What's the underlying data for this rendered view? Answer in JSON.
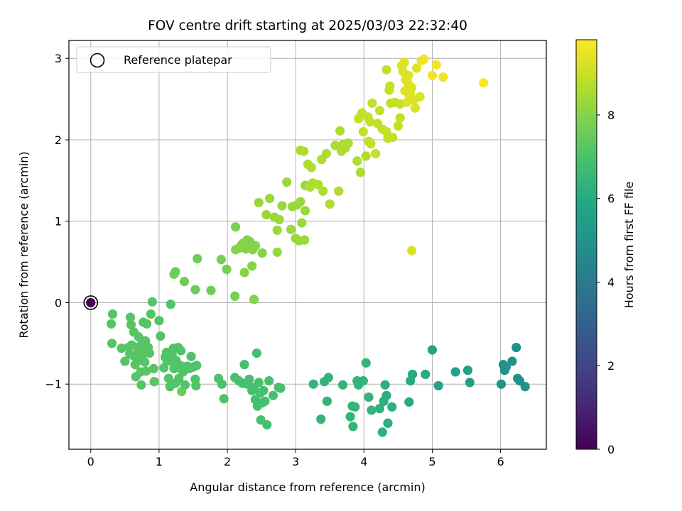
{
  "chart_data": {
    "type": "scatter",
    "title": "FOV centre drift starting at 2025/03/03 22:32:40",
    "xlabel": "Angular distance from reference (arcmin)",
    "ylabel": "Rotation from reference (arcmin)",
    "xlim": [
      -0.32,
      6.67
    ],
    "ylim": [
      -1.8,
      3.22
    ],
    "xticks": [
      0,
      1,
      2,
      3,
      4,
      5,
      6
    ],
    "yticks": [
      -1,
      0,
      1,
      2,
      3
    ],
    "xtick_labels": [
      "0",
      "1",
      "2",
      "3",
      "4",
      "5",
      "6"
    ],
    "ytick_labels": [
      "−1",
      "0",
      "1",
      "2",
      "3"
    ],
    "grid": true,
    "legend": {
      "position": "top-left",
      "label": "Reference platepar"
    },
    "colorbar": {
      "label": "Hours from first FF file",
      "min": 0,
      "max": 9.8,
      "ticks": [
        0,
        2,
        4,
        6,
        8
      ],
      "tick_labels": [
        "0",
        "2",
        "4",
        "6",
        "8"
      ],
      "colormap": "viridis"
    },
    "reference_point": {
      "x": 0,
      "y": 0,
      "value": 0
    },
    "points": [
      [
        0.3,
        -0.26,
        7.2
      ],
      [
        0.32,
        -0.14,
        7.2
      ],
      [
        0.31,
        -0.5,
        7.2
      ],
      [
        0.45,
        -0.56,
        7.2
      ],
      [
        0.5,
        -0.72,
        7.2
      ],
      [
        0.55,
        -0.55,
        7.2
      ],
      [
        0.57,
        -0.63,
        7.2
      ],
      [
        0.58,
        -0.18,
        7.2
      ],
      [
        0.59,
        -0.27,
        7.2
      ],
      [
        0.6,
        -0.52,
        7.2
      ],
      [
        0.62,
        -0.65,
        7.2
      ],
      [
        0.63,
        -0.36,
        7.2
      ],
      [
        0.65,
        -0.76,
        7.2
      ],
      [
        0.66,
        -0.91,
        7.2
      ],
      [
        0.68,
        -0.55,
        7.2
      ],
      [
        0.69,
        -0.71,
        7.2
      ],
      [
        0.7,
        -0.42,
        7.2
      ],
      [
        0.72,
        -0.6,
        7.2
      ],
      [
        0.73,
        -0.85,
        7.2
      ],
      [
        0.74,
        -1.01,
        7.2
      ],
      [
        0.75,
        -0.5,
        7.2
      ],
      [
        0.76,
        -0.64,
        7.2
      ],
      [
        0.77,
        -0.24,
        7.2
      ],
      [
        0.78,
        -0.57,
        7.2
      ],
      [
        0.79,
        -0.73,
        7.2
      ],
      [
        0.8,
        -0.47,
        7.2
      ],
      [
        0.81,
        -0.84,
        7.2
      ],
      [
        0.82,
        -0.26,
        7.2
      ],
      [
        0.84,
        -0.55,
        7.2
      ],
      [
        0.86,
        -0.62,
        7.2
      ],
      [
        0.88,
        -0.14,
        7.2
      ],
      [
        0.9,
        0.01,
        7.2
      ],
      [
        0.92,
        -0.81,
        7.2
      ],
      [
        0.93,
        -0.97,
        7.2
      ],
      [
        1.0,
        -0.22,
        7.1
      ],
      [
        1.02,
        -0.41,
        7.1
      ],
      [
        1.07,
        -0.8,
        7.1
      ],
      [
        1.09,
        -0.67,
        7.1
      ],
      [
        1.11,
        -0.61,
        7.1
      ],
      [
        1.12,
        -0.72,
        7.1
      ],
      [
        1.14,
        -0.93,
        7.1
      ],
      [
        1.16,
        -1.03,
        7.1
      ],
      [
        1.17,
        -0.02,
        7.1
      ],
      [
        1.19,
        -0.63,
        7.1
      ],
      [
        1.2,
        -0.72,
        7.1
      ],
      [
        1.21,
        -0.56,
        7.1
      ],
      [
        1.22,
        -0.81,
        7.1
      ],
      [
        1.24,
        -0.99,
        7.1
      ],
      [
        1.25,
        -0.71,
        7.1
      ],
      [
        1.26,
        -0.79,
        7.1
      ],
      [
        1.28,
        -0.55,
        7.1
      ],
      [
        1.29,
        -0.93,
        7.1
      ],
      [
        1.31,
        -0.77,
        7.1
      ],
      [
        1.32,
        -0.59,
        7.1
      ],
      [
        1.33,
        -1.09,
        7.6
      ],
      [
        1.35,
        -0.85,
        7.1
      ],
      [
        1.36,
        -0.79,
        7.1
      ],
      [
        1.38,
        -1.01,
        7.1
      ],
      [
        1.41,
        -0.78,
        7.1
      ],
      [
        1.44,
        -0.81,
        7.1
      ],
      [
        1.47,
        -0.66,
        7.1
      ],
      [
        1.5,
        -0.79,
        7.1
      ],
      [
        1.53,
        -0.94,
        7.1
      ],
      [
        1.54,
        -1.02,
        7.1
      ],
      [
        1.55,
        -0.77,
        7.1
      ],
      [
        1.22,
        0.35,
        7.6
      ],
      [
        1.24,
        0.38,
        7.6
      ],
      [
        1.37,
        0.26,
        7.6
      ],
      [
        1.53,
        0.16,
        7.6
      ],
      [
        1.56,
        0.54,
        7.6
      ],
      [
        1.76,
        0.15,
        7.6
      ],
      [
        1.91,
        0.53,
        7.8
      ],
      [
        1.99,
        0.41,
        7.8
      ],
      [
        2.11,
        0.08,
        7.8
      ],
      [
        2.12,
        0.93,
        7.8
      ],
      [
        2.12,
        0.65,
        8.0
      ],
      [
        2.17,
        0.67,
        8.0
      ],
      [
        2.2,
        0.7,
        8.0
      ],
      [
        2.23,
        0.73,
        8.0
      ],
      [
        2.25,
        0.37,
        8.0
      ],
      [
        2.27,
        0.66,
        8.0
      ],
      [
        2.29,
        0.77,
        8.0
      ],
      [
        2.31,
        0.72,
        8.0
      ],
      [
        2.33,
        0.75,
        8.0
      ],
      [
        2.35,
        0.68,
        8.0
      ],
      [
        2.36,
        0.45,
        8.0
      ],
      [
        2.37,
        0.65,
        8.0
      ],
      [
        2.39,
        0.04,
        8.0
      ],
      [
        2.41,
        0.7,
        8.0
      ],
      [
        2.46,
        1.23,
        8.3
      ],
      [
        2.51,
        0.61,
        8.0
      ],
      [
        2.57,
        1.08,
        8.3
      ],
      [
        2.62,
        1.28,
        8.3
      ],
      [
        2.69,
        1.05,
        8.3
      ],
      [
        2.73,
        0.62,
        8.3
      ],
      [
        2.73,
        0.89,
        8.3
      ],
      [
        2.76,
        1.02,
        8.3
      ],
      [
        2.8,
        1.19,
        8.3
      ],
      [
        2.87,
        1.48,
        8.3
      ],
      [
        2.93,
        0.9,
        8.3
      ],
      [
        2.95,
        1.18,
        8.3
      ],
      [
        3.0,
        0.79,
        8.3
      ],
      [
        3.02,
        1.2,
        8.3
      ],
      [
        3.05,
        0.76,
        8.3
      ],
      [
        3.07,
        1.24,
        8.3
      ],
      [
        3.09,
        0.98,
        8.3
      ],
      [
        3.13,
        0.77,
        8.3
      ],
      [
        3.14,
        1.13,
        8.3
      ],
      [
        3.14,
        1.44,
        8.3
      ],
      [
        3.07,
        1.87,
        8.6
      ],
      [
        3.12,
        1.86,
        8.6
      ],
      [
        3.18,
        1.7,
        8.6
      ],
      [
        3.21,
        1.42,
        8.6
      ],
      [
        3.23,
        1.66,
        8.6
      ],
      [
        3.25,
        1.47,
        8.6
      ],
      [
        3.33,
        1.45,
        8.6
      ],
      [
        3.38,
        1.76,
        8.6
      ],
      [
        3.4,
        1.37,
        8.6
      ],
      [
        3.45,
        1.83,
        8.6
      ],
      [
        3.5,
        1.21,
        8.6
      ],
      [
        3.58,
        1.93,
        8.6
      ],
      [
        3.63,
        1.37,
        8.6
      ],
      [
        3.65,
        2.11,
        8.6
      ],
      [
        3.67,
        1.86,
        8.6
      ],
      [
        3.69,
        1.94,
        8.6
      ],
      [
        3.73,
        1.9,
        8.6
      ],
      [
        3.77,
        1.96,
        8.6
      ],
      [
        3.9,
        1.74,
        8.6
      ],
      [
        3.92,
        2.26,
        8.9
      ],
      [
        3.95,
        1.6,
        8.6
      ],
      [
        3.97,
        2.33,
        8.9
      ],
      [
        3.99,
        2.1,
        8.9
      ],
      [
        4.03,
        1.8,
        8.6
      ],
      [
        4.06,
        2.28,
        8.9
      ],
      [
        4.07,
        1.98,
        8.9
      ],
      [
        4.09,
        2.22,
        8.9
      ],
      [
        4.1,
        1.95,
        8.9
      ],
      [
        4.12,
        2.45,
        8.9
      ],
      [
        4.17,
        1.83,
        8.9
      ],
      [
        4.2,
        2.2,
        8.9
      ],
      [
        4.23,
        2.36,
        8.9
      ],
      [
        4.27,
        2.13,
        8.9
      ],
      [
        4.33,
        2.1,
        8.9
      ],
      [
        4.33,
        2.86,
        8.9
      ],
      [
        4.35,
        2.02,
        8.9
      ],
      [
        4.37,
        2.61,
        8.9
      ],
      [
        4.38,
        2.66,
        8.9
      ],
      [
        4.39,
        2.45,
        8.9
      ],
      [
        4.42,
        2.03,
        8.9
      ],
      [
        4.45,
        2.46,
        8.9
      ],
      [
        4.5,
        2.17,
        8.9
      ],
      [
        4.53,
        2.44,
        8.9
      ],
      [
        4.53,
        2.27,
        8.9
      ],
      [
        4.55,
        2.91,
        9.3
      ],
      [
        4.57,
        2.84,
        9.3
      ],
      [
        4.59,
        2.95,
        9.3
      ],
      [
        4.6,
        2.6,
        9.3
      ],
      [
        4.61,
        2.74,
        9.3
      ],
      [
        4.63,
        2.46,
        9.3
      ],
      [
        4.64,
        2.7,
        9.3
      ],
      [
        4.65,
        2.79,
        9.3
      ],
      [
        4.66,
        2.55,
        9.3
      ],
      [
        4.67,
        2.66,
        9.3
      ],
      [
        4.68,
        2.56,
        9.3
      ],
      [
        4.7,
        2.64,
        9.3
      ],
      [
        4.7,
        0.64,
        9.2
      ],
      [
        4.73,
        2.49,
        9.3
      ],
      [
        4.75,
        2.39,
        9.3
      ],
      [
        4.77,
        2.88,
        9.3
      ],
      [
        4.82,
        2.53,
        9.3
      ],
      [
        4.84,
        2.97,
        9.6
      ],
      [
        4.88,
        2.99,
        9.6
      ],
      [
        5.0,
        2.79,
        9.6
      ],
      [
        5.06,
        2.92,
        9.6
      ],
      [
        5.16,
        2.77,
        9.6
      ],
      [
        5.75,
        2.7,
        9.8
      ],
      [
        1.87,
        -0.93,
        7.0
      ],
      [
        1.92,
        -1.0,
        7.0
      ],
      [
        1.95,
        -1.18,
        7.0
      ],
      [
        2.11,
        -0.92,
        6.9
      ],
      [
        2.17,
        -0.96,
        6.9
      ],
      [
        2.22,
        -0.99,
        6.9
      ],
      [
        2.25,
        -0.76,
        6.9
      ],
      [
        2.29,
        -1.0,
        6.9
      ],
      [
        2.32,
        -0.94,
        6.9
      ],
      [
        2.36,
        -1.08,
        6.9
      ],
      [
        2.39,
        -1.04,
        6.9
      ],
      [
        2.41,
        -1.19,
        6.9
      ],
      [
        2.43,
        -0.62,
        6.9
      ],
      [
        2.44,
        -1.27,
        6.9
      ],
      [
        2.46,
        -0.98,
        6.9
      ],
      [
        2.48,
        -1.11,
        6.9
      ],
      [
        2.49,
        -1.44,
        6.9
      ],
      [
        2.51,
        -1.23,
        6.9
      ],
      [
        2.53,
        -1.08,
        6.9
      ],
      [
        2.55,
        -1.21,
        6.9
      ],
      [
        2.58,
        -1.5,
        6.9
      ],
      [
        2.61,
        -0.96,
        6.9
      ],
      [
        2.67,
        -1.14,
        6.9
      ],
      [
        2.75,
        -1.04,
        6.9
      ],
      [
        2.78,
        -1.05,
        6.9
      ],
      [
        3.26,
        -1.0,
        6.4
      ],
      [
        3.37,
        -1.43,
        6.4
      ],
      [
        3.42,
        -0.97,
        6.4
      ],
      [
        3.46,
        -1.21,
        6.4
      ],
      [
        3.48,
        -0.92,
        6.4
      ],
      [
        3.69,
        -1.01,
        6.4
      ],
      [
        3.8,
        -1.4,
        6.4
      ],
      [
        3.83,
        -1.27,
        6.4
      ],
      [
        3.84,
        -1.52,
        6.4
      ],
      [
        3.87,
        -1.28,
        6.4
      ],
      [
        3.9,
        -0.96,
        6.4
      ],
      [
        3.92,
        -1.01,
        6.4
      ],
      [
        3.99,
        -0.96,
        6.4
      ],
      [
        4.03,
        -0.74,
        6.4
      ],
      [
        4.07,
        -1.16,
        6.4
      ],
      [
        4.11,
        -1.32,
        6.4
      ],
      [
        4.23,
        -1.3,
        6.2
      ],
      [
        4.27,
        -1.59,
        6.2
      ],
      [
        4.29,
        -1.21,
        6.2
      ],
      [
        4.31,
        -1.01,
        6.2
      ],
      [
        4.33,
        -1.14,
        6.2
      ],
      [
        4.35,
        -1.48,
        6.2
      ],
      [
        4.41,
        -1.28,
        6.2
      ],
      [
        4.66,
        -1.22,
        6.0
      ],
      [
        4.68,
        -0.96,
        6.0
      ],
      [
        4.71,
        -0.88,
        6.0
      ],
      [
        4.9,
        -0.88,
        6.0
      ],
      [
        5.0,
        -0.58,
        5.7
      ],
      [
        5.09,
        -1.02,
        5.7
      ],
      [
        5.34,
        -0.85,
        5.6
      ],
      [
        5.52,
        -0.83,
        5.5
      ],
      [
        5.55,
        -0.98,
        5.5
      ],
      [
        6.01,
        -1.0,
        5.0
      ],
      [
        6.04,
        -0.76,
        5.0
      ],
      [
        6.06,
        -0.83,
        5.0
      ],
      [
        6.08,
        -0.79,
        5.0
      ],
      [
        6.17,
        -0.72,
        4.9
      ],
      [
        6.23,
        -0.55,
        4.9
      ],
      [
        6.25,
        -0.93,
        4.9
      ],
      [
        6.28,
        -0.96,
        4.9
      ],
      [
        6.36,
        -1.03,
        4.9
      ]
    ]
  }
}
